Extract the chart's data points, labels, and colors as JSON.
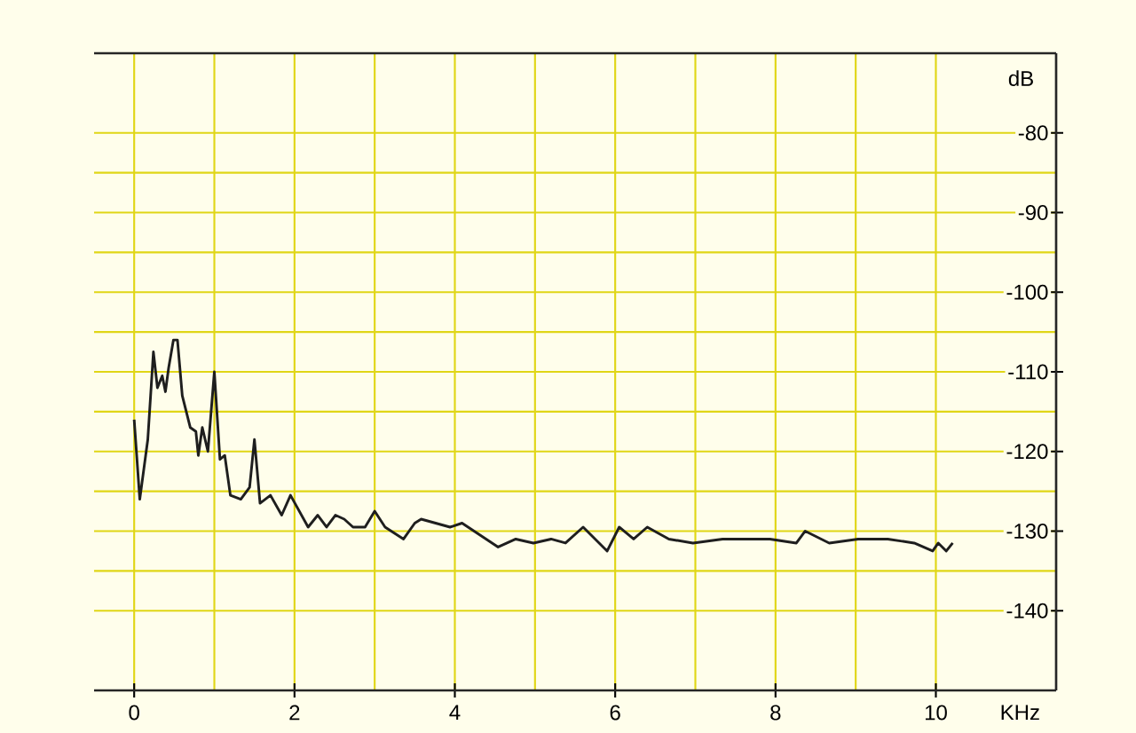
{
  "chart_data": {
    "type": "line",
    "xlabel": "KHz",
    "ylabel": "dB",
    "xlim": [
      -0.5,
      11.5
    ],
    "ylim": [
      -150,
      -70
    ],
    "xticks": [
      0,
      2,
      4,
      6,
      8,
      10
    ],
    "yticks": [
      -140,
      -130,
      -120,
      -110,
      -100,
      -90,
      -80
    ],
    "grid": true,
    "marker": "none",
    "line_style": "solid",
    "series": [
      {
        "color": "#1e1e1e",
        "x": [
          0.0,
          0.07,
          0.17,
          0.24,
          0.29,
          0.35,
          0.39,
          0.43,
          0.49,
          0.54,
          0.6,
          0.7,
          0.77,
          0.8,
          0.85,
          0.92,
          1.0,
          1.07,
          1.13,
          1.2,
          1.33,
          1.44,
          1.5,
          1.57,
          1.7,
          1.84,
          1.95,
          2.17,
          2.29,
          2.4,
          2.51,
          2.62,
          2.73,
          2.88,
          3.0,
          3.13,
          3.36,
          3.5,
          3.58,
          3.94,
          4.09,
          4.54,
          4.76,
          4.98,
          5.2,
          5.38,
          5.6,
          5.9,
          6.05,
          6.23,
          6.4,
          6.67,
          6.97,
          7.34,
          7.63,
          7.93,
          8.26,
          8.37,
          8.67,
          9.03,
          9.4,
          9.73,
          9.96,
          10.03,
          10.13,
          10.21
        ],
        "values": [
          -116,
          -126,
          -118.5,
          -107.5,
          -112,
          -110.5,
          -112.5,
          -109.5,
          -106,
          -106,
          -113,
          -117,
          -117.5,
          -120.5,
          -117,
          -120,
          -110,
          -121,
          -120.5,
          -125.5,
          -126,
          -124.5,
          -118.5,
          -126.5,
          -125.5,
          -128,
          -125.5,
          -129.5,
          -128,
          -129.5,
          -128,
          -128.5,
          -129.5,
          -129.5,
          -127.5,
          -129.5,
          -131,
          -129,
          -128.5,
          -129.5,
          -129,
          -132,
          -131,
          -131.5,
          -131,
          -131.5,
          -129.5,
          -132.5,
          -129.5,
          -131,
          -129.5,
          -131,
          -131.5,
          -131,
          -131,
          -131,
          -131.5,
          -130,
          -131.5,
          -131,
          -131,
          -131.5,
          -132.5,
          -131.5,
          -132.5,
          -131.5
        ]
      }
    ]
  }
}
